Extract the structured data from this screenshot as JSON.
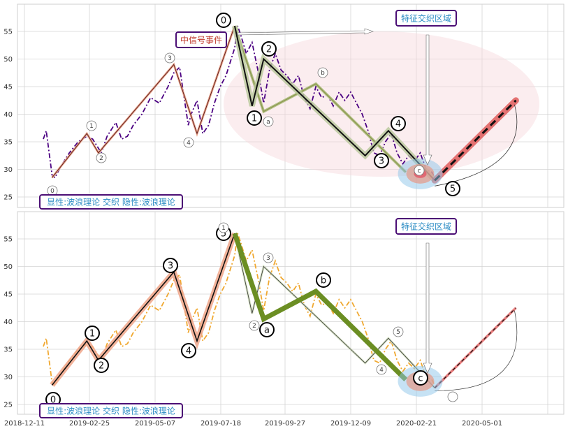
{
  "chart_data": [
    {
      "type": "line",
      "panel": "top",
      "ylim": [
        23,
        59
      ],
      "y_ticks": [
        25,
        30,
        35,
        40,
        45,
        50,
        55
      ],
      "grid": true,
      "price_series": {
        "color": "#4b0082",
        "style": "dash-dot",
        "points": [
          [
            0,
            35.5
          ],
          [
            1,
            37
          ],
          [
            3,
            29
          ],
          [
            4,
            28.5
          ],
          [
            6,
            30.5
          ],
          [
            9,
            33
          ],
          [
            12,
            35
          ],
          [
            15,
            36
          ],
          [
            17,
            35.5
          ],
          [
            20,
            33
          ],
          [
            22,
            36
          ],
          [
            25,
            38.5
          ],
          [
            27,
            35.5
          ],
          [
            29,
            36
          ],
          [
            31,
            38
          ],
          [
            34,
            40
          ],
          [
            37,
            43
          ],
          [
            40,
            42
          ],
          [
            43,
            45
          ],
          [
            45,
            47.5
          ],
          [
            47,
            48.5
          ],
          [
            48,
            45
          ],
          [
            50,
            38
          ],
          [
            51,
            40
          ],
          [
            53,
            42.5
          ],
          [
            55,
            36.5
          ],
          [
            57,
            38
          ],
          [
            59,
            42
          ],
          [
            61,
            45
          ],
          [
            63,
            47
          ],
          [
            66,
            52
          ],
          [
            67,
            56
          ],
          [
            68,
            54.5
          ],
          [
            70,
            51
          ],
          [
            72,
            53
          ],
          [
            74,
            48
          ],
          [
            76,
            42
          ],
          [
            78,
            48
          ],
          [
            80,
            51
          ],
          [
            82,
            48
          ],
          [
            84,
            47
          ],
          [
            86,
            45.5
          ],
          [
            88,
            47
          ],
          [
            90,
            43
          ],
          [
            92,
            41
          ],
          [
            94,
            45
          ],
          [
            96,
            43
          ],
          [
            98,
            43.5
          ],
          [
            100,
            41.5
          ],
          [
            102,
            44
          ],
          [
            104,
            42.5
          ],
          [
            106,
            44
          ],
          [
            108,
            42
          ],
          [
            110,
            40
          ],
          [
            112,
            37
          ],
          [
            114,
            33
          ],
          [
            116,
            32.5
          ],
          [
            118,
            35
          ],
          [
            120,
            36.5
          ],
          [
            122,
            33
          ],
          [
            124,
            31
          ],
          [
            126,
            32.5
          ],
          [
            128,
            31.5
          ],
          [
            130,
            33
          ],
          [
            132,
            30
          ],
          [
            134,
            29.5
          ],
          [
            135,
            28.5
          ]
        ]
      },
      "wave_main": {
        "labels": [
          "0",
          "1",
          "2",
          "3",
          "4",
          "5"
        ],
        "points": [
          [
            66,
            56
          ],
          [
            72,
            41.5
          ],
          [
            76,
            50
          ],
          [
            111,
            32.5
          ],
          [
            119,
            37
          ],
          [
            135,
            28
          ]
        ],
        "end_label": "5"
      },
      "wave_minor_left": {
        "labels": [
          "0",
          "1",
          "2",
          "3",
          "4"
        ],
        "points": [
          [
            3,
            28.5
          ],
          [
            15,
            36.5
          ],
          [
            19,
            33
          ],
          [
            45,
            49
          ],
          [
            53,
            36.5
          ],
          [
            66,
            56
          ]
        ]
      },
      "wave_minor_right": {
        "labels": [
          "a",
          "b",
          "c"
        ],
        "points": [
          [
            66,
            56
          ],
          [
            76,
            40.5
          ],
          [
            94,
            45.5
          ],
          [
            125,
            29.5
          ]
        ]
      },
      "projection": {
        "from": [
          135,
          28
        ],
        "to": [
          163,
          42.5
        ],
        "style": "thick-red-dashed"
      },
      "boxes": {
        "event": "中信号事件",
        "feature": "特征交织区域",
        "legend": "显性:波浪理论 交织 隐性:波浪理论"
      },
      "highlight": {
        "x": 130,
        "y": 29.2
      }
    },
    {
      "type": "line",
      "panel": "bottom",
      "ylim": [
        23,
        59
      ],
      "y_ticks": [
        25,
        30,
        35,
        40,
        45,
        50,
        55
      ],
      "grid": true,
      "x_tick_labels": [
        "2018-12-11",
        "2019-02-25",
        "2019-05-07",
        "2019-07-18",
        "2019-09-27",
        "2019-12-09",
        "2020-02-21",
        "2020-05-01"
      ],
      "price_series": {
        "color": "#f0a830",
        "style": "dash-dot"
      },
      "wave_main": {
        "labels": [
          "0",
          "1",
          "2",
          "3",
          "4",
          "5"
        ],
        "points": [
          [
            3,
            28.5
          ],
          [
            15,
            36.5
          ],
          [
            19,
            33
          ],
          [
            45,
            49
          ],
          [
            53,
            36.5
          ],
          [
            66,
            56
          ]
        ]
      },
      "wave_corrective": {
        "labels": [
          "a",
          "b",
          "c"
        ],
        "points": [
          [
            66,
            56
          ],
          [
            76,
            40.5
          ],
          [
            94,
            45.5
          ],
          [
            125,
            29.5
          ]
        ]
      },
      "wave_minor_right": {
        "labels": [
          "1",
          "2",
          "3",
          "4",
          "5"
        ],
        "points": [
          [
            66,
            56
          ],
          [
            72,
            41.5
          ],
          [
            76,
            50
          ],
          [
            111,
            32.5
          ],
          [
            119,
            37
          ],
          [
            135,
            28
          ]
        ]
      },
      "projection": {
        "from": [
          135,
          28
        ],
        "to": [
          163,
          42.5
        ],
        "style": "thin-dashed"
      },
      "boxes": {
        "feature": "特征交织区域",
        "legend": "显性:波浪理论 交织 隐性:波浪理论"
      },
      "highlight": {
        "x": 130,
        "y": 29.2
      }
    }
  ]
}
